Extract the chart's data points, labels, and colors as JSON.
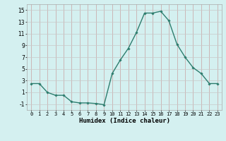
{
  "x": [
    0,
    1,
    2,
    3,
    4,
    5,
    6,
    7,
    8,
    9,
    10,
    11,
    12,
    13,
    14,
    15,
    16,
    17,
    18,
    19,
    20,
    21,
    22,
    23
  ],
  "y": [
    2.5,
    2.5,
    1.0,
    0.5,
    0.5,
    -0.6,
    -0.8,
    -0.8,
    -0.9,
    -1.1,
    4.2,
    6.5,
    8.5,
    11.2,
    14.5,
    14.5,
    14.8,
    13.2,
    9.2,
    7.0,
    5.2,
    4.2,
    2.5,
    2.5
  ],
  "line_color": "#2d7d6e",
  "marker": "D",
  "marker_size": 1.8,
  "line_width": 1.0,
  "xlabel": "Humidex (Indice chaleur)",
  "xlim": [
    -0.5,
    23.5
  ],
  "ylim": [
    -2,
    16
  ],
  "yticks": [
    -1,
    1,
    3,
    5,
    7,
    9,
    11,
    13,
    15
  ],
  "xticks": [
    0,
    1,
    2,
    3,
    4,
    5,
    6,
    7,
    8,
    9,
    10,
    11,
    12,
    13,
    14,
    15,
    16,
    17,
    18,
    19,
    20,
    21,
    22,
    23
  ],
  "xtick_labels": [
    "0",
    "1",
    "2",
    "3",
    "4",
    "5",
    "6",
    "7",
    "8",
    "9",
    "10",
    "11",
    "12",
    "13",
    "14",
    "15",
    "16",
    "17",
    "18",
    "19",
    "20",
    "21",
    "22",
    "23"
  ],
  "bg_color": "#d4f0f0",
  "grid_color_major": "#c8a0a0",
  "grid_color_minor": "#c8d8d8"
}
